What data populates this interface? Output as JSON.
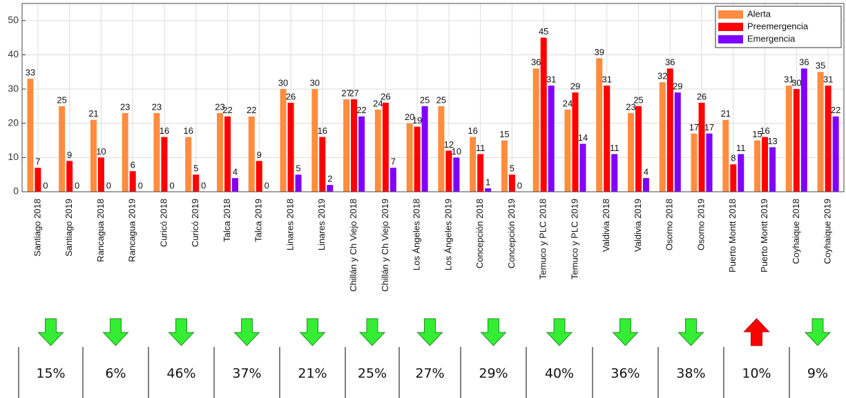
{
  "chart_data": {
    "type": "bar",
    "categories": [
      "Santiago 2018",
      "Santiago 2019",
      "Rancagua 2018",
      "Rancagua 2019",
      "Curicó 2018",
      "Curicó 2019",
      "Talca 2018",
      "Talca 2019",
      "Linares 2018",
      "Linares 2019",
      "Chillán y Ch Viejo 2018",
      "Chillán y Ch Viejo 2019",
      "Los Ángeles 2018",
      "Los Ángeles 2019",
      "Concepción 2018",
      "Concepción 2019",
      "Temuco y PLC 2018",
      "Temuco y PLC 2019",
      "Valdivia 2018",
      "Valdivia 2019",
      "Osorno 2018",
      "Osorno 2019",
      "Puerto Montt 2018",
      "Puerto Montt 2019",
      "Coyhaique 2018",
      "Coyhaique 2019"
    ],
    "series": [
      {
        "name": "Alerta",
        "color": "#ff8c3f",
        "values": [
          33,
          25,
          21,
          23,
          23,
          16,
          23,
          22,
          30,
          30,
          27,
          24,
          20,
          25,
          16,
          15,
          36,
          24,
          39,
          23,
          32,
          17,
          21,
          15,
          31,
          35
        ]
      },
      {
        "name": "Preemergencia",
        "color": "#ff0000",
        "values": [
          7,
          9,
          10,
          6,
          16,
          5,
          22,
          9,
          26,
          16,
          27,
          26,
          19,
          12,
          11,
          5,
          45,
          29,
          31,
          25,
          36,
          26,
          8,
          16,
          30,
          31
        ]
      },
      {
        "name": "Emergencia",
        "color": "#7f00ff",
        "values": [
          0,
          0,
          0,
          0,
          0,
          0,
          4,
          0,
          5,
          2,
          22,
          7,
          25,
          10,
          1,
          0,
          31,
          14,
          11,
          4,
          29,
          17,
          11,
          13,
          36,
          22
        ]
      }
    ],
    "ylim": [
      0,
      55
    ],
    "yticks": [
      0,
      10,
      20,
      30,
      40,
      50
    ],
    "grid": true,
    "legend": "top-right"
  },
  "table": {
    "down_color": "#33ee33",
    "up_color": "#ff0000",
    "cells": [
      {
        "direction": "down",
        "text": "15%"
      },
      {
        "direction": "down",
        "text": "6%"
      },
      {
        "direction": "down",
        "text": "46%"
      },
      {
        "direction": "down",
        "text": "37%"
      },
      {
        "direction": "down",
        "text": "21%"
      },
      {
        "direction": "down",
        "text": "25%"
      },
      {
        "direction": "down",
        "text": "27%"
      },
      {
        "direction": "down",
        "text": "29%"
      },
      {
        "direction": "down",
        "text": "40%"
      },
      {
        "direction": "down",
        "text": "36%"
      },
      {
        "direction": "down",
        "text": "38%"
      },
      {
        "direction": "up",
        "text": "10%"
      },
      {
        "direction": "down",
        "text": "9%"
      }
    ]
  }
}
